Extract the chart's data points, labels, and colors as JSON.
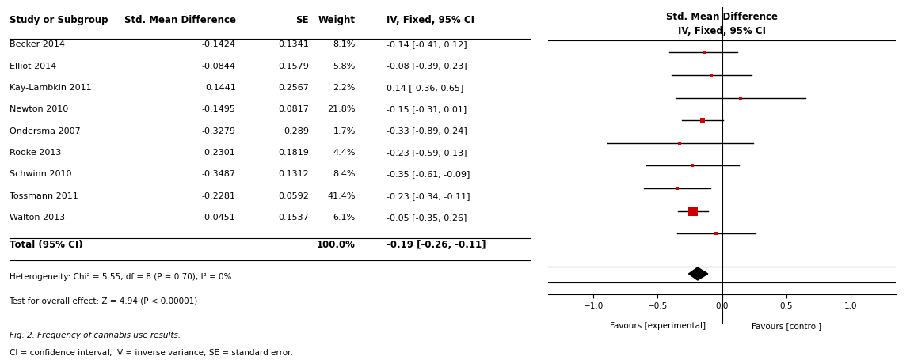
{
  "studies": [
    {
      "name": "Becker 2014",
      "smd": -0.1424,
      "se": 0.1341,
      "weight": "8.1%",
      "ci_str": "-0.14 [-0.41, 0.12]",
      "ci_low": -0.41,
      "ci_high": 0.12
    },
    {
      "name": "Elliot 2014",
      "smd": -0.0844,
      "se": 0.1579,
      "weight": "5.8%",
      "ci_str": "-0.08 [-0.39, 0.23]",
      "ci_low": -0.39,
      "ci_high": 0.23
    },
    {
      "name": "Kay-Lambkin 2011",
      "smd": 0.1441,
      "se": 0.2567,
      "weight": "2.2%",
      "ci_str": "0.14 [-0.36, 0.65]",
      "ci_low": -0.36,
      "ci_high": 0.65
    },
    {
      "name": "Newton 2010",
      "smd": -0.1495,
      "se": 0.0817,
      "weight": "21.8%",
      "ci_str": "-0.15 [-0.31, 0.01]",
      "ci_low": -0.31,
      "ci_high": 0.01
    },
    {
      "name": "Ondersma 2007",
      "smd": -0.3279,
      "se": 0.289,
      "weight": "1.7%",
      "ci_str": "-0.33 [-0.89, 0.24]",
      "ci_low": -0.89,
      "ci_high": 0.24
    },
    {
      "name": "Rooke 2013",
      "smd": -0.2301,
      "se": 0.1819,
      "weight": "4.4%",
      "ci_str": "-0.23 [-0.59, 0.13]",
      "ci_low": -0.59,
      "ci_high": 0.13
    },
    {
      "name": "Schwinn 2010",
      "smd": -0.3487,
      "se": 0.1312,
      "weight": "8.4%",
      "ci_str": "-0.35 [-0.61, -0.09]",
      "ci_low": -0.61,
      "ci_high": -0.09
    },
    {
      "name": "Tossmann 2011",
      "smd": -0.2281,
      "se": 0.0592,
      "weight": "41.4%",
      "ci_str": "-0.23 [-0.34, -0.11]",
      "ci_low": -0.34,
      "ci_high": -0.11
    },
    {
      "name": "Walton 2013",
      "smd": -0.0451,
      "se": 0.1537,
      "weight": "6.1%",
      "ci_str": "-0.05 [-0.35, 0.26]",
      "ci_low": -0.35,
      "ci_high": 0.26
    }
  ],
  "total": {
    "smd": -0.19,
    "ci_low": -0.26,
    "ci_high": -0.11,
    "ci_str": "-0.19 [-0.26, -0.11]",
    "weight": "100.0%"
  },
  "heterogeneity_text": "Heterogeneity: Chi² = 5.55, df = 8 (P = 0.70); I² = 0%",
  "overall_effect_text": "Test for overall effect: Z = 4.94 (P < 0.00001)",
  "fig_caption_1": "Fig. 2. Frequency of cannabis use results.",
  "fig_caption_2": "CI = confidence interval; IV = inverse variance; SE = standard error.",
  "axis_ticks": [
    -1,
    -0.5,
    0,
    0.5,
    1
  ],
  "axis_xlim": [
    -1.35,
    1.35
  ],
  "xlabel_left": "Favours [experimental]",
  "xlabel_right": "Favours [control]",
  "marker_color": "#CC0000",
  "background_color": "#ffffff",
  "weight_sizes": [
    8.1,
    5.8,
    2.2,
    21.8,
    1.7,
    4.4,
    8.4,
    41.4,
    6.1
  ]
}
